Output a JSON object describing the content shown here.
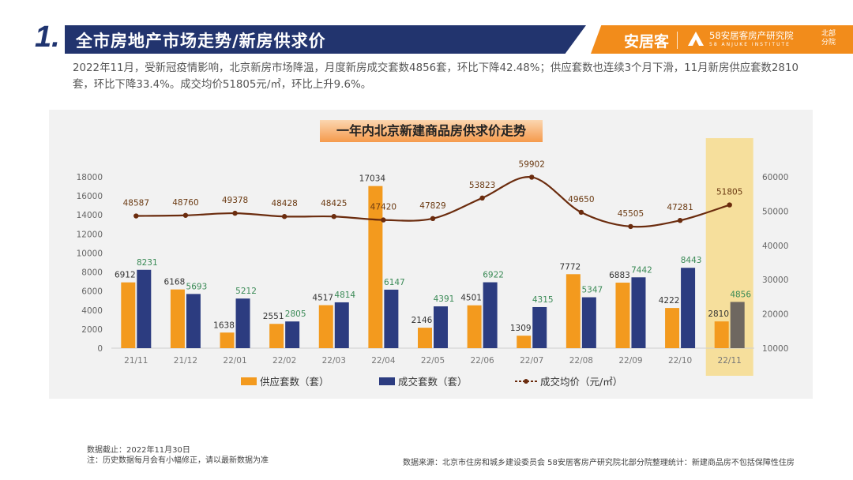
{
  "header": {
    "section_number": "1.",
    "title": "全市房地产市场走势/新房供求价",
    "brand": "安居客",
    "institute": "58安居客房产研究院",
    "institute_en": "58 ANJUKE INSTITUTE",
    "branch": "北部分院"
  },
  "summary": "2022年11月，受新冠疫情影响，北京新房市场降温，月度新房成交套数4856套，环比下降42.48%；供应套数也连续3个月下滑，11月新房供应套数2810套，环比下降33.4%。成交均价51805元/㎡，环比上升9.6%。",
  "colors": {
    "supply": "#f39a1e",
    "deals": "#2c3c80",
    "deals_highlight": "#6e6760",
    "price_line": "#6b2c0e",
    "highlight_band": "#f6df9c",
    "deals_label": "#3a8a56",
    "supply_label": "#333333",
    "price_label": "#6b3a12"
  },
  "chart_data": {
    "type": "bar+line",
    "title": "一年内北京新建商品房供求价走势",
    "categories": [
      "21/11",
      "21/12",
      "22/01",
      "22/02",
      "22/03",
      "22/04",
      "22/05",
      "22/06",
      "22/07",
      "22/08",
      "22/09",
      "22/10",
      "22/11"
    ],
    "series": [
      {
        "name": "供应套数（套）",
        "type": "bar",
        "axis": "left",
        "values": [
          6912,
          6168,
          1638,
          2551,
          4517,
          17034,
          2146,
          4501,
          1309,
          7772,
          6883,
          4222,
          2810
        ]
      },
      {
        "name": "成交套数（套）",
        "type": "bar",
        "axis": "left",
        "values": [
          8231,
          5693,
          5212,
          2805,
          4814,
          6147,
          4391,
          6922,
          4315,
          5347,
          7442,
          8443,
          4856
        ]
      },
      {
        "name": "成交均价（元/㎡）",
        "type": "line",
        "axis": "right",
        "values": [
          48587,
          48760,
          49378,
          48428,
          48425,
          47420,
          47829,
          53823,
          59902,
          49650,
          45505,
          47281,
          51805
        ]
      }
    ],
    "left_axis": {
      "min": 0,
      "max": 18000,
      "ticks": [
        0,
        2000,
        4000,
        6000,
        8000,
        10000,
        12000,
        14000,
        16000,
        18000
      ]
    },
    "right_axis": {
      "min": 10000,
      "max": 60000,
      "ticks": [
        10000,
        20000,
        30000,
        40000,
        50000,
        60000
      ]
    },
    "highlight_category": "22/11",
    "legend_position": "bottom"
  },
  "footer": {
    "data_cutoff": "数据截止：2022年11月30日",
    "note": "注：历史数据每月会有小幅修正，请以最新数据为准",
    "source": "数据来源：北京市住房和城乡建设委员会    58安居客房产研究院北部分院整理统计：新建商品房不包括保障性住房"
  }
}
